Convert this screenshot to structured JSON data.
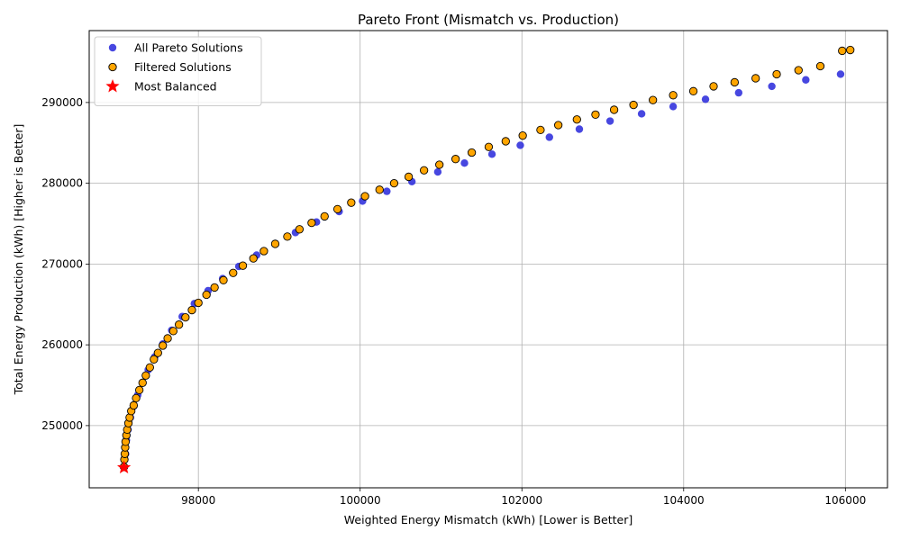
{
  "chart_data": {
    "type": "scatter",
    "title": "Pareto Front (Mismatch vs. Production)",
    "xlabel": "Weighted Energy Mismatch (kWh) [Lower is Better]",
    "ylabel": "Total Energy Production (kWh) [Higher is Better]",
    "xlim": [
      96650,
      106520
    ],
    "ylim": [
      242300,
      298900
    ],
    "xticks": [
      98000,
      100000,
      102000,
      104000,
      106000
    ],
    "yticks": [
      250000,
      260000,
      270000,
      280000,
      290000
    ],
    "grid": true,
    "legend_position": "top-left",
    "series": [
      {
        "name": "All Pareto Solutions",
        "marker": "circle",
        "color": "#3333dd",
        "points": [
          [
            97080,
            244900
          ],
          [
            97100,
            246500
          ],
          [
            97110,
            248200
          ],
          [
            97130,
            249500
          ],
          [
            97160,
            251000
          ],
          [
            97200,
            252400
          ],
          [
            97250,
            253800
          ],
          [
            97310,
            255300
          ],
          [
            97380,
            256900
          ],
          [
            97460,
            258500
          ],
          [
            97560,
            260100
          ],
          [
            97670,
            261800
          ],
          [
            97800,
            263500
          ],
          [
            97950,
            265100
          ],
          [
            98120,
            266700
          ],
          [
            98300,
            268200
          ],
          [
            98500,
            269700
          ],
          [
            98720,
            271100
          ],
          [
            98950,
            272500
          ],
          [
            99200,
            273900
          ],
          [
            99460,
            275200
          ],
          [
            99740,
            276500
          ],
          [
            100030,
            277800
          ],
          [
            100330,
            279000
          ],
          [
            100640,
            280200
          ],
          [
            100960,
            281400
          ],
          [
            101290,
            282500
          ],
          [
            101630,
            283600
          ],
          [
            101980,
            284700
          ],
          [
            102340,
            285700
          ],
          [
            102710,
            286700
          ],
          [
            103090,
            287700
          ],
          [
            103480,
            288600
          ],
          [
            103870,
            289500
          ],
          [
            104270,
            290400
          ],
          [
            104680,
            291200
          ],
          [
            105090,
            292000
          ],
          [
            105510,
            292800
          ],
          [
            105940,
            293500
          ],
          [
            106060,
            296500
          ]
        ]
      },
      {
        "name": "Filtered Solutions",
        "marker": "circle",
        "color": "#ffa500",
        "edgecolor": "#000000",
        "points": [
          [
            97080,
            244900
          ],
          [
            97085,
            245800
          ],
          [
            97090,
            246500
          ],
          [
            97095,
            247300
          ],
          [
            97100,
            248000
          ],
          [
            97110,
            248800
          ],
          [
            97120,
            249500
          ],
          [
            97135,
            250300
          ],
          [
            97150,
            251000
          ],
          [
            97170,
            251800
          ],
          [
            97200,
            252500
          ],
          [
            97230,
            253400
          ],
          [
            97270,
            254400
          ],
          [
            97310,
            255300
          ],
          [
            97350,
            256200
          ],
          [
            97400,
            257200
          ],
          [
            97450,
            258200
          ],
          [
            97500,
            259000
          ],
          [
            97560,
            259900
          ],
          [
            97620,
            260800
          ],
          [
            97690,
            261700
          ],
          [
            97760,
            262500
          ],
          [
            97840,
            263400
          ],
          [
            97920,
            264300
          ],
          [
            98000,
            265200
          ],
          [
            98100,
            266200
          ],
          [
            98200,
            267100
          ],
          [
            98310,
            268000
          ],
          [
            98430,
            268900
          ],
          [
            98550,
            269800
          ],
          [
            98680,
            270700
          ],
          [
            98810,
            271600
          ],
          [
            98950,
            272500
          ],
          [
            99100,
            273400
          ],
          [
            99250,
            274300
          ],
          [
            99400,
            275100
          ],
          [
            99560,
            275900
          ],
          [
            99720,
            276800
          ],
          [
            99890,
            277600
          ],
          [
            100060,
            278400
          ],
          [
            100240,
            279200
          ],
          [
            100420,
            280000
          ],
          [
            100600,
            280800
          ],
          [
            100790,
            281600
          ],
          [
            100980,
            282300
          ],
          [
            101180,
            283000
          ],
          [
            101380,
            283800
          ],
          [
            101590,
            284500
          ],
          [
            101800,
            285200
          ],
          [
            102010,
            285900
          ],
          [
            102230,
            286600
          ],
          [
            102450,
            287200
          ],
          [
            102680,
            287900
          ],
          [
            102910,
            288500
          ],
          [
            103140,
            289100
          ],
          [
            103380,
            289700
          ],
          [
            103620,
            290300
          ],
          [
            103870,
            290900
          ],
          [
            104120,
            291400
          ],
          [
            104370,
            292000
          ],
          [
            104630,
            292500
          ],
          [
            104890,
            293000
          ],
          [
            105150,
            293500
          ],
          [
            105420,
            294000
          ],
          [
            105690,
            294500
          ],
          [
            105960,
            296400
          ],
          [
            106060,
            296500
          ]
        ]
      },
      {
        "name": "Most Balanced",
        "marker": "star",
        "color": "#ff0000",
        "points": [
          [
            97080,
            244800
          ]
        ]
      }
    ]
  }
}
